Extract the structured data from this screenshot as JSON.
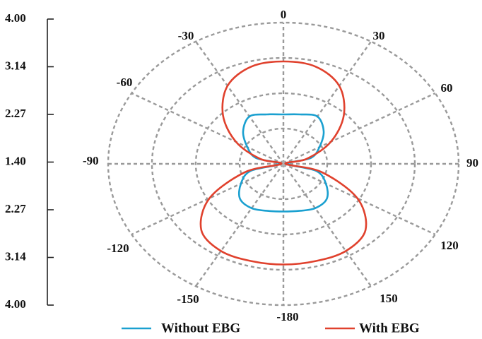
{
  "chart_data": {
    "type": "polar-line",
    "angular_ticks": [
      "0",
      "30",
      "60",
      "90",
      "120",
      "150",
      "-180",
      "-150",
      "-120",
      "-90",
      "-60",
      "-30"
    ],
    "radial_scale_labels": [
      "4.00",
      "3.14",
      "2.27",
      "1.40",
      "2.27",
      "3.14",
      "4.00"
    ],
    "radial_max": 4.0,
    "radial_rings": 4,
    "grid": true,
    "legend_position": "bottom",
    "series": [
      {
        "name": "Without EBG",
        "color": "#1aa0d0",
        "theta": [
          0,
          15,
          30,
          45,
          60,
          75,
          90,
          105,
          120,
          135,
          150,
          165,
          180,
          195,
          210,
          225,
          240,
          255,
          270,
          285,
          300,
          315,
          330,
          345
        ],
        "r": [
          1.4,
          1.45,
          1.55,
          1.3,
          0.95,
          0.65,
          0.1,
          0.78,
          1.12,
          1.4,
          1.45,
          1.38,
          1.35,
          1.38,
          1.45,
          1.4,
          1.12,
          0.78,
          0.1,
          0.65,
          0.95,
          1.3,
          1.55,
          1.45
        ]
      },
      {
        "name": "With EBG",
        "color": "#e0412d",
        "theta": [
          0,
          15,
          30,
          45,
          60,
          75,
          90,
          105,
          120,
          135,
          150,
          165,
          180,
          195,
          210,
          225,
          240,
          255,
          270,
          285,
          300,
          315,
          330,
          345
        ],
        "r": [
          2.9,
          2.85,
          2.55,
          1.95,
          1.25,
          0.55,
          0.05,
          0.9,
          1.95,
          2.65,
          2.85,
          2.85,
          2.85,
          2.85,
          2.85,
          2.65,
          1.95,
          0.9,
          0.05,
          0.55,
          1.25,
          1.95,
          2.55,
          2.85
        ]
      }
    ]
  },
  "colors": {
    "grid": "#9a9a9a",
    "axis": "#222222"
  }
}
